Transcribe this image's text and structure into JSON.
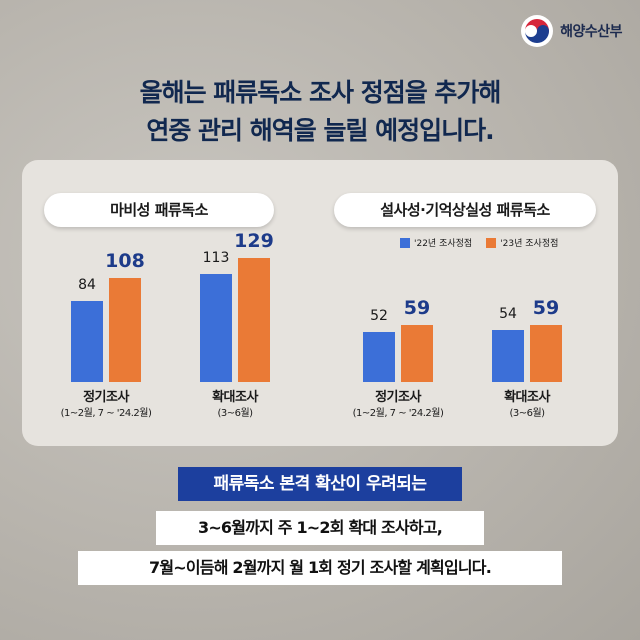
{
  "brand": {
    "name": "해양수산부"
  },
  "headline": {
    "line1": "올해는 패류독소 조사 정점을 추가해",
    "line2": "연중 관리 해역을 늘릴 예정입니다."
  },
  "legend": {
    "item1": "'22년 조사정점",
    "item2": "'23년 조사정점"
  },
  "colors": {
    "series_2022": "#3c6fd8",
    "series_2023": "#ea7a36",
    "navy": "#1c3f9e"
  },
  "chart_data": [
    {
      "type": "bar",
      "title": "마비성 패류독소",
      "categories": [
        "정기조사",
        "확대조사"
      ],
      "category_notes": [
        "(1~2월, 7 ~ '24.2월)",
        "(3~6월)"
      ],
      "series": [
        {
          "name": "'22년 조사정점",
          "values": [
            84,
            113
          ]
        },
        {
          "name": "'23년 조사정점",
          "values": [
            108,
            129
          ]
        }
      ],
      "ylim": [
        0,
        140
      ]
    },
    {
      "type": "bar",
      "title": "설사성·기억상실성 패류독소",
      "categories": [
        "정기조사",
        "확대조사"
      ],
      "category_notes": [
        "(1~2월, 7 ~ '24.2월)",
        "(3~6월)"
      ],
      "series": [
        {
          "name": "'22년 조사정점",
          "values": [
            52,
            54
          ]
        },
        {
          "name": "'23년 조사정점",
          "values": [
            59,
            59
          ]
        }
      ],
      "ylim": [
        0,
        140
      ]
    }
  ],
  "footer": {
    "highlight": "패류독소 본격 확산이 우려되는",
    "line1": "3~6월까지 주 1~2회 확대 조사하고,",
    "line2": "7월~이듬해 2월까지 월 1회 정기 조사할 계획입니다."
  }
}
